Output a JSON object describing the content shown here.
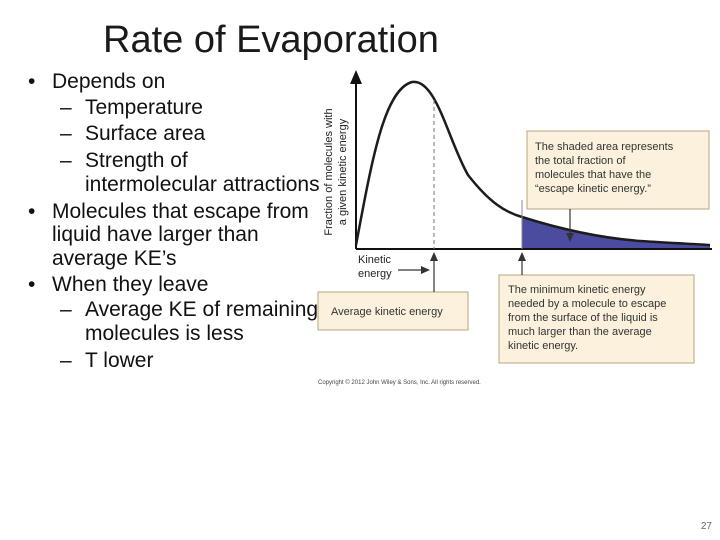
{
  "slide": {
    "title": "Rate of Evaporation",
    "page_number": "27"
  },
  "bullets": [
    {
      "text": "Depends on",
      "sub": [
        "Temperature",
        "Surface area",
        "Strength of intermolecular attractions"
      ]
    },
    {
      "text": "Molecules that escape from liquid have larger than average KE’s",
      "sub": []
    },
    {
      "text": "When they leave",
      "sub": [
        "Average KE of remaining molecules is less",
        "T lower"
      ]
    }
  ],
  "figure": {
    "y_axis_label_line1": "Fraction of molecules with",
    "y_axis_label_line2": "a given kinetic energy",
    "x_axis_label_line1": "Kinetic",
    "x_axis_label_line2": "energy",
    "callout_shaded_lines": [
      "The shaded area represents",
      "the total fraction of",
      "molecules that have the",
      "“escape kinetic energy.”"
    ],
    "callout_average": "Average kinetic energy",
    "callout_minimum_lines": [
      "The minimum kinetic energy",
      "needed by a molecule to escape",
      "from the surface of the liquid is",
      "much larger than the average",
      "kinetic energy."
    ],
    "copyright": "Copyright © 2012 John Wiley & Sons, Inc. All rights reserved.",
    "colors": {
      "curve": "#1c1c1c",
      "shading": "#4b4ca0",
      "callout_fill": "#fbf1dc",
      "callout_border": "#b8a582"
    }
  }
}
